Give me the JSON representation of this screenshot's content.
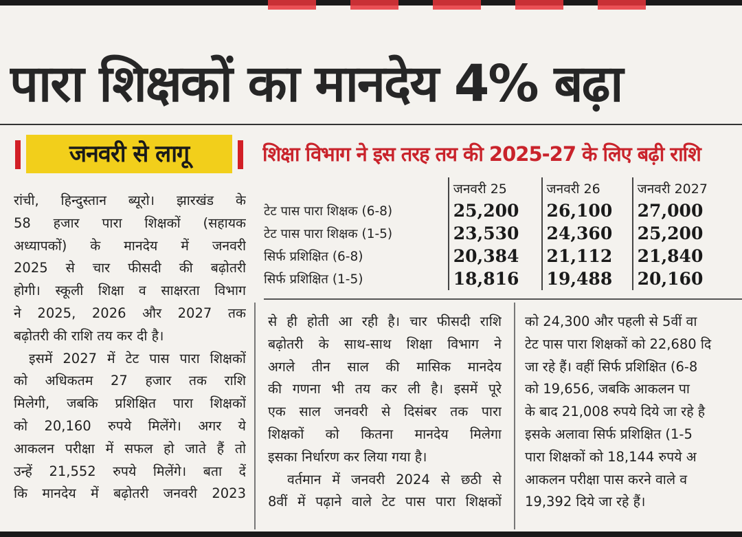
{
  "headline": "पारा शिक्षकों का मानदेय 4% बढ़ा",
  "kicker": "जनवरी से लागू",
  "table_title": "शिक्षा विभाग ने इस तरह तय की 2025-27 के लिए बढ़ी राशि",
  "rate_table": {
    "headers": [
      "जनवरी 25",
      "जनवरी 26",
      "जनवरी 2027"
    ],
    "rows": [
      {
        "label": "टेट पास पारा शिक्षक (6-8)",
        "values": [
          "25,200",
          "26,100",
          "27,000"
        ]
      },
      {
        "label": "टेट पास पारा शिक्षक (1-5)",
        "values": [
          "23,530",
          "24,360",
          "25,200"
        ]
      },
      {
        "label": "सिर्फ प्रशिक्षित (6-8)",
        "values": [
          "20,384",
          "21,112",
          "21,840"
        ]
      },
      {
        "label": "सिर्फ प्रशिक्षित (1-5)",
        "values": [
          "18,816",
          "19,488",
          "20,160"
        ]
      }
    ]
  },
  "column1": [
    "रांची, हिन्दुस्तान ब्यूरो। झारखंड के",
    "58 हजार पारा शिक्षकों (सहायक",
    "अध्यापकों) के मानदेय में जनवरी",
    "2025 से चार फीसदी की बढ़ोतरी",
    "होगी। स्कूली शिक्षा व साक्षरता विभाग",
    "ने 2025, 2026 और 2027 तक",
    "बढ़ोतरी की राशि तय कर दी है।",
    "इसमें 2027 में टेट पास पारा शिक्षकों",
    "को अधिकतम 27 हजार तक राशि",
    "मिलेगी, जबकि प्रशिक्षित पारा शिक्षकों",
    "को 20,160 रुपये मिलेंगे। अगर ये",
    "आकलन परीक्षा में सफल हो जाते हैं तो",
    "उन्हें 21,552 रुपये मिलेंगे। बता दें",
    "कि मानदेय में बढ़ोतरी जनवरी 2023"
  ],
  "column2": [
    "से ही होती आ रही है। चार फीसदी राशि",
    "बढ़ोतरी के साथ-साथ शिक्षा विभाग ने",
    "अगले तीन साल की मासिक मानदेय",
    "की गणना भी तय कर ली है। इसमें पूरे",
    "एक साल जनवरी से दिसंबर तक पारा",
    "शिक्षकों को कितना मानदेय मिलेगा",
    "इसका निर्धारण कर लिया गया है।",
    "वर्तमान में जनवरी 2024 से छठी से",
    "8वीं में पढ़ाने वाले टेट पास पारा शिक्षकों"
  ],
  "column3": [
    "को 24,300 और पहली से 5वीं वा",
    "टेट पास पारा शिक्षकों को 22,680 दि",
    "जा रहे हैं। वहीं सिर्फ प्रशिक्षित (6-8",
    "को 19,656, जबकि आकलन पा",
    "के बाद 21,008 रुपये दिये जा रहे है",
    "इसके अलावा सिर्फ प्रशिक्षित (1-5",
    "पारा शिक्षकों को 18,144 रुपये अ",
    "आकलन परीक्षा पास करने वाले व",
    "19,392 दिये जा रहे हैं।"
  ]
}
